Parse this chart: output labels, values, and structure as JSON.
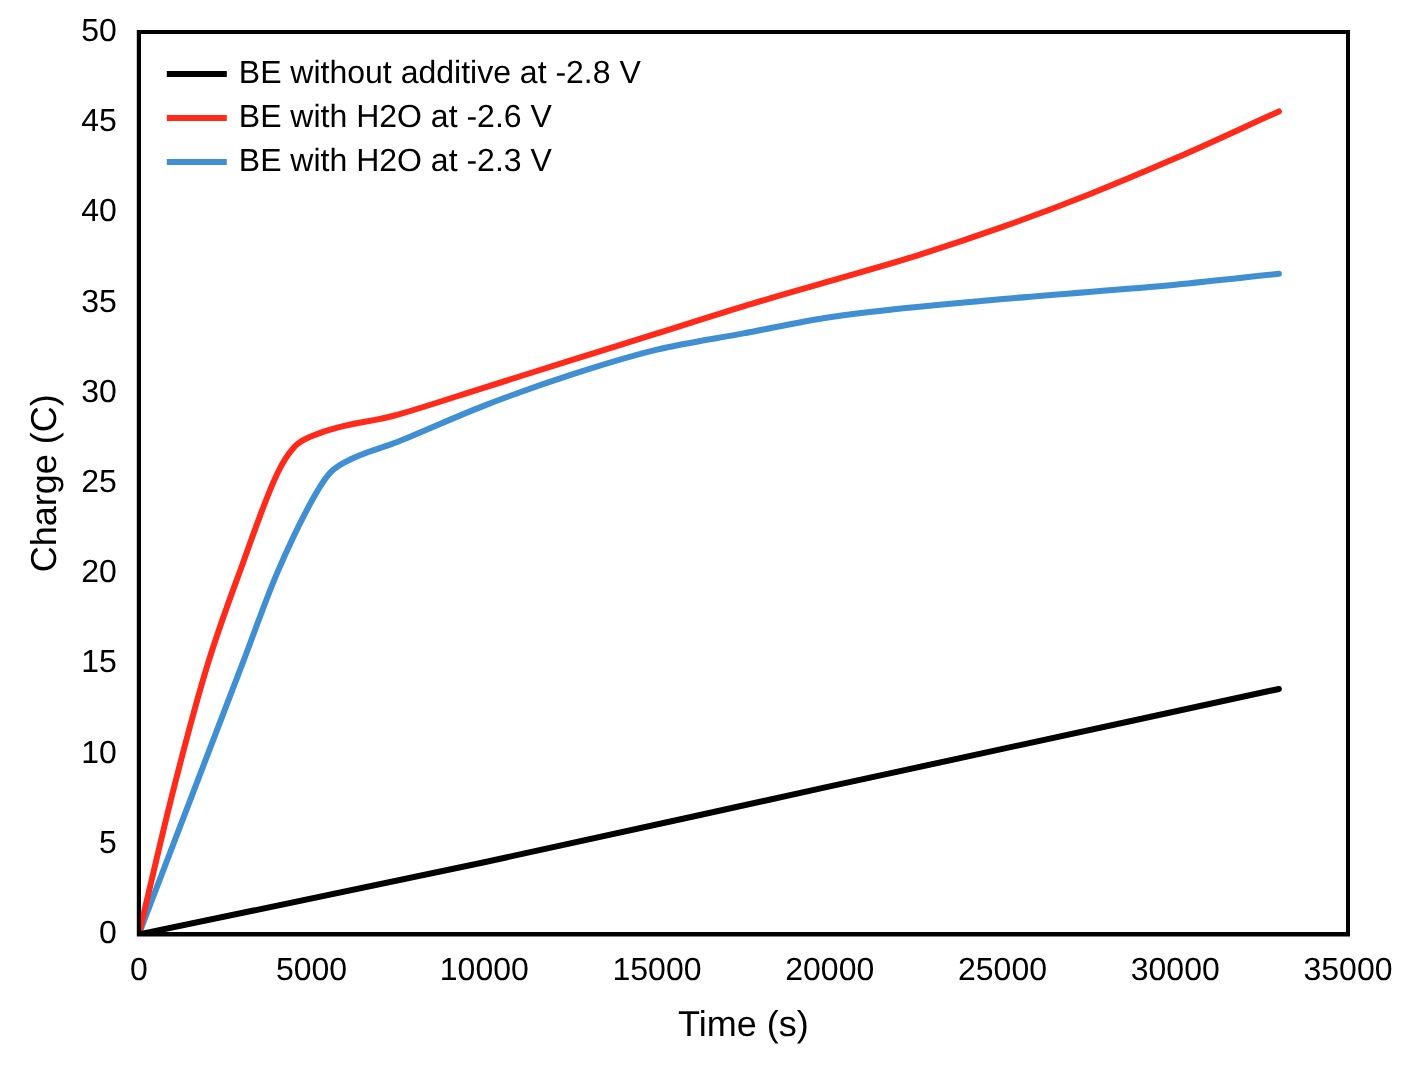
{
  "chart_data": {
    "type": "line",
    "xlabel": "Time (s)",
    "ylabel": "Charge (C)",
    "xlim": [
      0,
      35000
    ],
    "xticks": [
      0,
      5000,
      10000,
      15000,
      20000,
      25000,
      30000,
      35000
    ],
    "ylim": [
      0,
      50
    ],
    "yticks": [
      0,
      5,
      10,
      15,
      20,
      25,
      30,
      35,
      40,
      45,
      50
    ],
    "grid": false,
    "legend": "top left",
    "marker": "none",
    "line_style": "solid",
    "series": [
      {
        "name": "BE without additive at -2.8 V",
        "color": "#000000",
        "x": [
          0,
          10000,
          20000,
          33000
        ],
        "values": [
          0,
          4,
          8.2,
          13.6
        ]
      },
      {
        "name": "BE with H2O at -2.6 V",
        "color": "#ff2a1a",
        "x": [
          0,
          1000,
          2000,
          3000,
          4000,
          4500,
          5000,
          7500,
          10000,
          12500,
          15000,
          17500,
          20000,
          22500,
          25000,
          27500,
          30000,
          33000
        ],
        "values": [
          0,
          8,
          15,
          20.5,
          25.5,
          27,
          27.6,
          28.8,
          30.3,
          31.8,
          33.3,
          34.8,
          36.2,
          37.6,
          39.2,
          41,
          43,
          45.6
        ]
      },
      {
        "name": "BE with H2O at -2.3 V",
        "color": "#3f8fd2",
        "x": [
          0,
          1000,
          2000,
          3000,
          4000,
          5000,
          5500,
          6000,
          7500,
          10000,
          12500,
          15000,
          17500,
          20000,
          25000,
          30000,
          33000
        ],
        "values": [
          0,
          5,
          10,
          15,
          20,
          24,
          25.5,
          26.2,
          27.3,
          29.3,
          31,
          32.4,
          33.3,
          34.2,
          35.2,
          36,
          36.6
        ]
      }
    ]
  }
}
